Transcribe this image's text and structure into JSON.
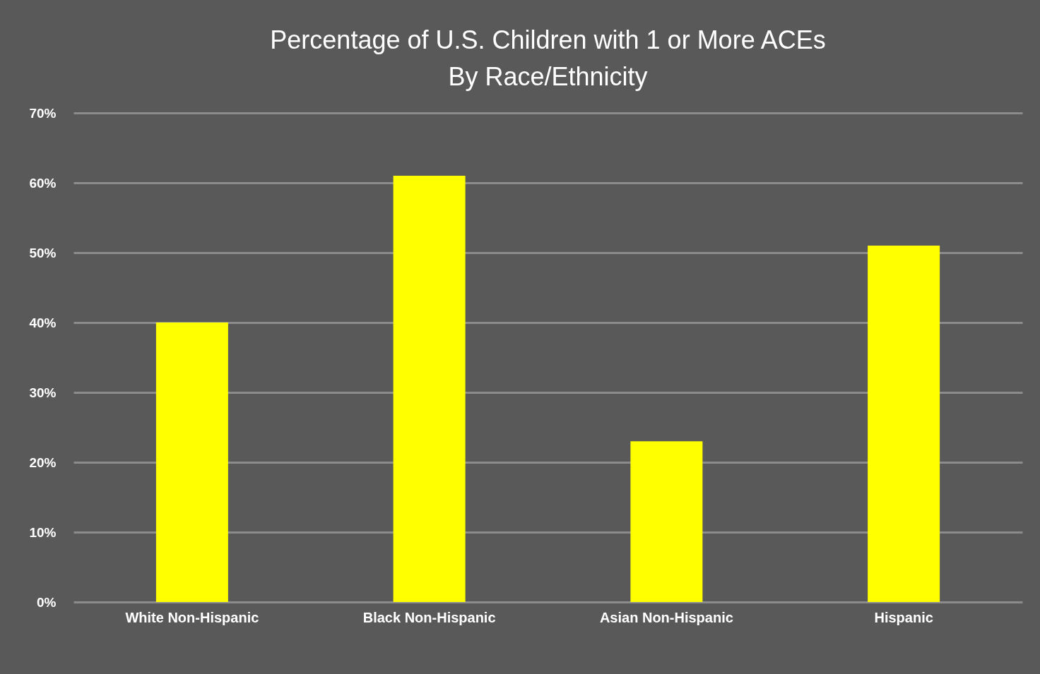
{
  "chart_data": {
    "type": "bar",
    "title": [
      "Percentage of U.S. Children with 1 or More ACEs",
      "By Race/Ethnicity"
    ],
    "categories": [
      "White Non-Hispanic",
      "Black Non-Hispanic",
      "Asian Non-Hispanic",
      "Hispanic"
    ],
    "values": [
      40,
      61,
      23,
      51
    ],
    "color": "#ffff00",
    "ylim": [
      0,
      70
    ],
    "yticks": [
      {
        "value": 0,
        "label": "0%"
      },
      {
        "value": 10,
        "label": "10%"
      },
      {
        "value": 20,
        "label": "20%"
      },
      {
        "value": 30,
        "label": "30%"
      },
      {
        "value": 40,
        "label": "40%"
      },
      {
        "value": 50,
        "label": "50%"
      },
      {
        "value": 60,
        "label": "60%"
      },
      {
        "value": 70,
        "label": "70%"
      }
    ],
    "grid": "y"
  }
}
